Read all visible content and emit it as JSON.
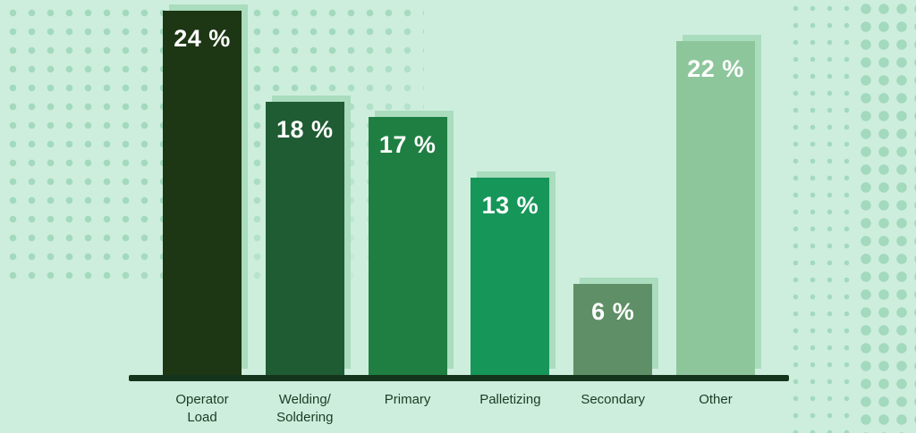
{
  "chart_data": {
    "type": "bar",
    "title": "",
    "categories": [
      "Operator\nLoad",
      "Welding/\nSoldering",
      "Primary",
      "Palletizing",
      "Secondary",
      "Other"
    ],
    "values": [
      24,
      18,
      17,
      13,
      6,
      22
    ],
    "value_labels": [
      "24 %",
      "18 %",
      "17 %",
      "13 %",
      "6 %",
      "22 %"
    ],
    "unit": "%",
    "ylim": [
      0,
      25
    ],
    "grid": false,
    "legend": "none",
    "bar_colors": [
      "#1d3614",
      "#1f5b33",
      "#1f7f42",
      "#169659",
      "#5f8f66",
      "#8ec69b"
    ],
    "highlight_color": "#aadcbe",
    "axis_color": "#14351c",
    "background_color": "#cdeedd",
    "dot_color": "#a3d9bd",
    "label_color": "#1c3b24",
    "value_text_color": "#ffffff"
  }
}
